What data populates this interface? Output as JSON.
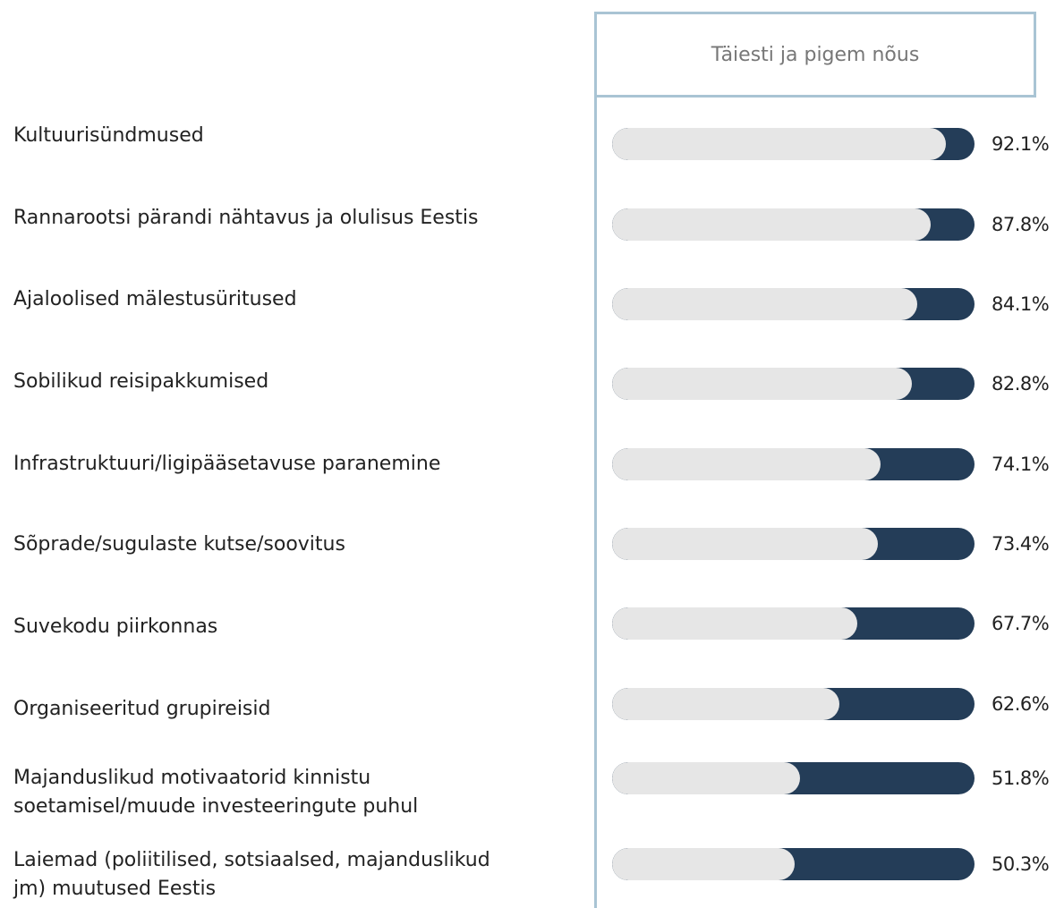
{
  "chart_data": {
    "type": "bar",
    "categories": [
      "Kultuurisündmused",
      "Rannarootsi pärandi nähtavus ja olulisus Eestis",
      "Ajaloolised mälestusüritused",
      "Sobilikud reisipakkumised",
      "Infrastruktuuri/ligipääsetavuse paranemine",
      "Sõprade/sugulaste kutse/soovitus",
      "Suvekodu piirkonnas",
      "Organiseeritud grupireisid",
      "Majanduslikud motivaatorid kinnistu\nsoetamisel/muude investeeringute puhul",
      "Laiemad (poliitilised, sotsiaalsed, majanduslikud\njm) muutused Eestis"
    ],
    "series": [
      {
        "name": "Täiesti ja pigem nõus",
        "color": "#e6e6e6",
        "track_color": "#243d58",
        "values": [
          92.1,
          87.8,
          84.1,
          82.8,
          74.1,
          73.4,
          67.7,
          62.6,
          51.8,
          50.3
        ],
        "value_labels": [
          "92.1%",
          "87.8%",
          "84.1%",
          "82.8%",
          "74.1%",
          "73.4%",
          "67.7%",
          "62.6%",
          "51.8%",
          "50.3%"
        ]
      }
    ],
    "xlim": [
      0,
      100
    ]
  }
}
